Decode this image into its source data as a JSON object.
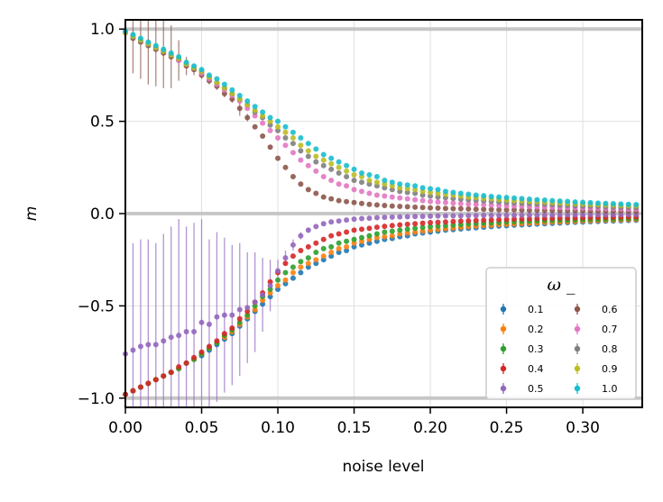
{
  "chart_data": {
    "type": "scatter",
    "title": "",
    "xlabel": "noise level",
    "ylabel": "m",
    "xlim": [
      0.0,
      0.339
    ],
    "ylim": [
      -1.05,
      1.05
    ],
    "grid": true,
    "x_ticks": [
      "0.00",
      "0.05",
      "0.10",
      "0.15",
      "0.20",
      "0.25",
      "0.30"
    ],
    "x_tick_values": [
      0.0,
      0.05,
      0.1,
      0.15,
      0.2,
      0.25,
      0.3
    ],
    "y_ticks": [
      "−1.0",
      "−0.5",
      "0.0",
      "0.5",
      "1.0"
    ],
    "y_tick_values": [
      -1.0,
      -0.5,
      0.0,
      0.5,
      1.0
    ],
    "reference_lines_y": [
      -1.0,
      0.0,
      1.0
    ],
    "legend": {
      "title": "ω₋",
      "title_display": "ω _",
      "placement": "lower-right",
      "columns": 2
    },
    "x": [
      0.0,
      0.005,
      0.01,
      0.015,
      0.02,
      0.025,
      0.03,
      0.035,
      0.04,
      0.045,
      0.05,
      0.055,
      0.06,
      0.065,
      0.07,
      0.075,
      0.08,
      0.085,
      0.09,
      0.095,
      0.1,
      0.105,
      0.11,
      0.115,
      0.12,
      0.125,
      0.13,
      0.135,
      0.14,
      0.145,
      0.15,
      0.155,
      0.16,
      0.165,
      0.17,
      0.175,
      0.18,
      0.185,
      0.19,
      0.195,
      0.2,
      0.205,
      0.21,
      0.215,
      0.22,
      0.225,
      0.23,
      0.235,
      0.24,
      0.245,
      0.25,
      0.255,
      0.26,
      0.265,
      0.27,
      0.275,
      0.28,
      0.285,
      0.29,
      0.295,
      0.3,
      0.305,
      0.31,
      0.315,
      0.32,
      0.325,
      0.33,
      0.335
    ],
    "series": [
      {
        "name": "0.1",
        "color": "#1f77b4",
        "values": [
          -0.98,
          -0.96,
          -0.94,
          -0.92,
          -0.9,
          -0.88,
          -0.86,
          -0.84,
          -0.81,
          -0.79,
          -0.77,
          -0.74,
          -0.71,
          -0.68,
          -0.65,
          -0.61,
          -0.57,
          -0.53,
          -0.49,
          -0.45,
          -0.41,
          -0.38,
          -0.35,
          -0.32,
          -0.29,
          -0.27,
          -0.25,
          -0.23,
          -0.21,
          -0.2,
          -0.18,
          -0.17,
          -0.16,
          -0.15,
          -0.14,
          -0.135,
          -0.125,
          -0.12,
          -0.11,
          -0.105,
          -0.1,
          -0.095,
          -0.09,
          -0.087,
          -0.083,
          -0.08,
          -0.077,
          -0.074,
          -0.071,
          -0.068,
          -0.066,
          -0.063,
          -0.061,
          -0.059,
          -0.057,
          -0.055,
          -0.053,
          -0.051,
          -0.049,
          -0.047,
          -0.046,
          -0.044,
          -0.043,
          -0.041,
          -0.04,
          -0.039,
          -0.037,
          -0.036
        ],
        "errors": []
      },
      {
        "name": "0.2",
        "color": "#ff7f0e",
        "values": [
          -0.98,
          -0.96,
          -0.94,
          -0.92,
          -0.9,
          -0.88,
          -0.86,
          -0.84,
          -0.81,
          -0.79,
          -0.76,
          -0.73,
          -0.7,
          -0.67,
          -0.64,
          -0.6,
          -0.56,
          -0.52,
          -0.47,
          -0.43,
          -0.39,
          -0.36,
          -0.32,
          -0.29,
          -0.27,
          -0.25,
          -0.23,
          -0.21,
          -0.19,
          -0.18,
          -0.16,
          -0.15,
          -0.14,
          -0.13,
          -0.125,
          -0.12,
          -0.11,
          -0.105,
          -0.1,
          -0.095,
          -0.09,
          -0.085,
          -0.081,
          -0.078,
          -0.074,
          -0.071,
          -0.068,
          -0.065,
          -0.063,
          -0.06,
          -0.058,
          -0.056,
          -0.054,
          -0.052,
          -0.05,
          -0.048,
          -0.046,
          -0.045,
          -0.043,
          -0.042,
          -0.04,
          -0.039,
          -0.038,
          -0.036,
          -0.035,
          -0.034,
          -0.033,
          -0.032
        ],
        "errors": []
      },
      {
        "name": "0.3",
        "color": "#2ca02c",
        "values": [
          -0.98,
          -0.96,
          -0.94,
          -0.92,
          -0.9,
          -0.88,
          -0.86,
          -0.84,
          -0.81,
          -0.79,
          -0.76,
          -0.73,
          -0.7,
          -0.66,
          -0.63,
          -0.59,
          -0.55,
          -0.5,
          -0.45,
          -0.41,
          -0.36,
          -0.32,
          -0.29,
          -0.26,
          -0.24,
          -0.21,
          -0.19,
          -0.18,
          -0.16,
          -0.15,
          -0.14,
          -0.13,
          -0.12,
          -0.11,
          -0.1,
          -0.095,
          -0.09,
          -0.085,
          -0.08,
          -0.075,
          -0.071,
          -0.068,
          -0.065,
          -0.062,
          -0.059,
          -0.056,
          -0.054,
          -0.052,
          -0.05,
          -0.048,
          -0.046,
          -0.044,
          -0.043,
          -0.041,
          -0.04,
          -0.038,
          -0.037,
          -0.036,
          -0.035,
          -0.034,
          -0.033,
          -0.032,
          -0.031,
          -0.03,
          -0.029,
          -0.028,
          -0.027,
          -0.026
        ],
        "errors": []
      },
      {
        "name": "0.4",
        "color": "#d62728",
        "values": [
          -0.98,
          -0.96,
          -0.94,
          -0.92,
          -0.9,
          -0.88,
          -0.86,
          -0.83,
          -0.81,
          -0.78,
          -0.75,
          -0.72,
          -0.69,
          -0.65,
          -0.62,
          -0.57,
          -0.53,
          -0.48,
          -0.43,
          -0.37,
          -0.32,
          -0.27,
          -0.23,
          -0.2,
          -0.18,
          -0.16,
          -0.14,
          -0.12,
          -0.11,
          -0.1,
          -0.09,
          -0.085,
          -0.08,
          -0.074,
          -0.069,
          -0.065,
          -0.061,
          -0.058,
          -0.055,
          -0.052,
          -0.049,
          -0.047,
          -0.045,
          -0.043,
          -0.041,
          -0.039,
          -0.037,
          -0.036,
          -0.034,
          -0.033,
          -0.032,
          -0.03,
          -0.029,
          -0.028,
          -0.027,
          -0.026,
          -0.025,
          -0.024,
          -0.024,
          -0.023,
          -0.022,
          -0.021,
          -0.021,
          -0.02,
          -0.019,
          -0.019,
          -0.018,
          -0.018
        ],
        "errors": []
      },
      {
        "name": "0.5",
        "color": "#9467bd",
        "values": [
          -0.76,
          -0.74,
          -0.72,
          -0.71,
          -0.71,
          -0.69,
          -0.67,
          -0.66,
          -0.64,
          -0.64,
          -0.59,
          -0.6,
          -0.56,
          -0.55,
          -0.55,
          -0.52,
          -0.51,
          -0.48,
          -0.44,
          -0.39,
          -0.31,
          -0.24,
          -0.17,
          -0.12,
          -0.09,
          -0.07,
          -0.055,
          -0.045,
          -0.04,
          -0.035,
          -0.03,
          -0.027,
          -0.025,
          -0.022,
          -0.02,
          -0.019,
          -0.018,
          -0.017,
          -0.016,
          -0.015,
          -0.014,
          -0.013,
          -0.013,
          -0.012,
          -0.012,
          -0.011,
          -0.011,
          -0.01,
          -0.01,
          -0.01,
          -0.009,
          -0.009,
          -0.009,
          -0.008,
          -0.008,
          -0.008,
          -0.008,
          -0.007,
          -0.007,
          -0.007,
          -0.007,
          -0.006,
          -0.006,
          -0.006,
          -0.006,
          -0.006,
          -0.005,
          -0.005
        ],
        "errors": [
          0.62,
          0.58,
          0.58,
          0.57,
          0.55,
          0.58,
          0.6,
          0.63,
          0.57,
          0.59,
          0.56,
          0.46,
          0.46,
          0.42,
          0.38,
          0.36,
          0.3,
          0.27,
          0.2,
          0.14,
          0.06,
          0.04,
          0.03,
          0.02,
          0.015,
          0.01,
          0.01,
          0.008,
          0.006,
          0.005,
          0.004,
          0.004,
          0.003,
          0.003,
          0.003,
          0.002,
          0.002,
          0.002,
          0.002,
          0.002,
          0.002,
          0.002,
          0.002,
          0.002,
          0.002,
          0.002,
          0.002,
          0.002,
          0.002,
          0.002,
          0.002,
          0.002,
          0.002,
          0.002,
          0.002,
          0.002,
          0.002,
          0.002,
          0.002,
          0.002,
          0.002,
          0.002,
          0.002,
          0.002,
          0.002,
          0.002,
          0.002,
          0.002
        ]
      },
      {
        "name": "0.6",
        "color": "#8c564b",
        "values": [
          0.98,
          0.95,
          0.93,
          0.91,
          0.89,
          0.87,
          0.85,
          0.83,
          0.8,
          0.78,
          0.75,
          0.72,
          0.69,
          0.65,
          0.62,
          0.57,
          0.52,
          0.47,
          0.42,
          0.36,
          0.3,
          0.25,
          0.2,
          0.16,
          0.13,
          0.11,
          0.09,
          0.08,
          0.07,
          0.065,
          0.06,
          0.055,
          0.05,
          0.047,
          0.044,
          0.041,
          0.039,
          0.037,
          0.035,
          0.033,
          0.031,
          0.03,
          0.028,
          0.027,
          0.026,
          0.025,
          0.024,
          0.023,
          0.022,
          0.021,
          0.02,
          0.02,
          0.019,
          0.018,
          0.018,
          0.017,
          0.017,
          0.016,
          0.016,
          0.015,
          0.015,
          0.014,
          0.014,
          0.014,
          0.013,
          0.013,
          0.012,
          0.012
        ],
        "errors": [
          0.16,
          0.19,
          0.2,
          0.21,
          0.2,
          0.19,
          0.17,
          0.11,
          0.05,
          0.03,
          0.02,
          0.02,
          0.02,
          0.02,
          0.02,
          0.04,
          0.02,
          0.01,
          0.01,
          0.01,
          0.01,
          0.01,
          0.01,
          0.005,
          0.005,
          0.005,
          0.005,
          0.005,
          0.005,
          0.005,
          0.005,
          0.005,
          0.005,
          0.005,
          0.005,
          0.005,
          0.005,
          0.005,
          0.005,
          0.005,
          0.005,
          0.005,
          0.005,
          0.005,
          0.005,
          0.005,
          0.005,
          0.005,
          0.005,
          0.005,
          0.005,
          0.005,
          0.005,
          0.005,
          0.005,
          0.005,
          0.005,
          0.005,
          0.005,
          0.005,
          0.005,
          0.005,
          0.005,
          0.005,
          0.005,
          0.005,
          0.005,
          0.005
        ]
      },
      {
        "name": "0.7",
        "color": "#e377c2",
        "values": [
          0.98,
          0.96,
          0.94,
          0.92,
          0.9,
          0.88,
          0.86,
          0.83,
          0.81,
          0.79,
          0.76,
          0.73,
          0.7,
          0.67,
          0.64,
          0.61,
          0.57,
          0.53,
          0.49,
          0.45,
          0.41,
          0.37,
          0.33,
          0.29,
          0.26,
          0.23,
          0.2,
          0.18,
          0.16,
          0.15,
          0.13,
          0.12,
          0.11,
          0.1,
          0.095,
          0.09,
          0.085,
          0.08,
          0.075,
          0.07,
          0.066,
          0.063,
          0.06,
          0.057,
          0.054,
          0.052,
          0.05,
          0.048,
          0.046,
          0.044,
          0.042,
          0.041,
          0.039,
          0.038,
          0.036,
          0.035,
          0.034,
          0.033,
          0.032,
          0.031,
          0.03,
          0.029,
          0.028,
          0.027,
          0.026,
          0.025,
          0.024,
          0.024
        ],
        "errors": []
      },
      {
        "name": "0.8",
        "color": "#7f7f7f",
        "values": [
          0.98,
          0.96,
          0.94,
          0.92,
          0.9,
          0.88,
          0.86,
          0.84,
          0.81,
          0.79,
          0.77,
          0.74,
          0.71,
          0.68,
          0.65,
          0.62,
          0.59,
          0.55,
          0.52,
          0.48,
          0.45,
          0.41,
          0.38,
          0.34,
          0.31,
          0.28,
          0.26,
          0.24,
          0.22,
          0.2,
          0.18,
          0.17,
          0.16,
          0.15,
          0.14,
          0.13,
          0.12,
          0.115,
          0.11,
          0.1,
          0.095,
          0.09,
          0.086,
          0.082,
          0.078,
          0.075,
          0.072,
          0.069,
          0.066,
          0.063,
          0.06,
          0.058,
          0.056,
          0.054,
          0.052,
          0.05,
          0.048,
          0.046,
          0.044,
          0.043,
          0.041,
          0.04,
          0.039,
          0.037,
          0.036,
          0.035,
          0.034,
          0.033
        ],
        "errors": []
      },
      {
        "name": "0.9",
        "color": "#bcbd22",
        "values": [
          0.98,
          0.96,
          0.94,
          0.92,
          0.9,
          0.88,
          0.86,
          0.84,
          0.81,
          0.79,
          0.77,
          0.74,
          0.71,
          0.68,
          0.65,
          0.62,
          0.59,
          0.56,
          0.53,
          0.5,
          0.47,
          0.44,
          0.41,
          0.37,
          0.34,
          0.31,
          0.29,
          0.27,
          0.25,
          0.23,
          0.21,
          0.2,
          0.18,
          0.17,
          0.16,
          0.15,
          0.14,
          0.135,
          0.13,
          0.12,
          0.115,
          0.11,
          0.105,
          0.1,
          0.095,
          0.09,
          0.087,
          0.083,
          0.08,
          0.077,
          0.074,
          0.071,
          0.069,
          0.066,
          0.064,
          0.062,
          0.06,
          0.058,
          0.056,
          0.054,
          0.052,
          0.05,
          0.049,
          0.047,
          0.046,
          0.044,
          0.043,
          0.042
        ],
        "errors": []
      },
      {
        "name": "1.0",
        "color": "#17becf",
        "values": [
          0.99,
          0.97,
          0.95,
          0.93,
          0.91,
          0.89,
          0.87,
          0.85,
          0.82,
          0.8,
          0.78,
          0.75,
          0.73,
          0.7,
          0.67,
          0.64,
          0.61,
          0.58,
          0.55,
          0.52,
          0.5,
          0.47,
          0.44,
          0.41,
          0.38,
          0.35,
          0.32,
          0.3,
          0.28,
          0.26,
          0.24,
          0.22,
          0.21,
          0.2,
          0.18,
          0.17,
          0.16,
          0.155,
          0.15,
          0.14,
          0.135,
          0.13,
          0.12,
          0.115,
          0.11,
          0.105,
          0.1,
          0.097,
          0.093,
          0.09,
          0.087,
          0.084,
          0.081,
          0.078,
          0.075,
          0.073,
          0.07,
          0.068,
          0.066,
          0.063,
          0.061,
          0.059,
          0.057,
          0.055,
          0.054,
          0.052,
          0.05,
          0.049
        ],
        "errors": []
      }
    ]
  }
}
